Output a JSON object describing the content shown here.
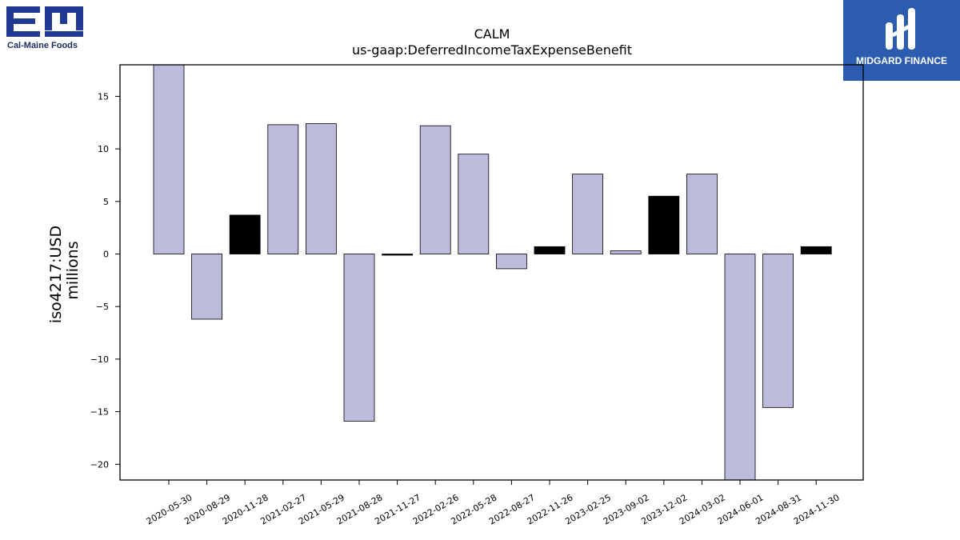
{
  "logos": {
    "left": {
      "monogram": "EM",
      "company": "Cal-Maine Foods",
      "color": "#1f3a93"
    },
    "right": {
      "brand": "MIDGARD FINANCE",
      "background": "#2b5cb0"
    }
  },
  "chart_data": {
    "type": "bar",
    "title": "CALM",
    "subtitle": "us-gaap:DeferredIncomeTaxExpenseBenefit",
    "ylabel": "iso4217:USD",
    "ylabel_unit": "millions",
    "xlabel": "",
    "ylim": [
      -21.5,
      18
    ],
    "yticks": [
      15,
      10,
      5,
      0,
      -5,
      -10,
      -15,
      -20
    ],
    "ytick_labels": [
      "15",
      "10",
      "5",
      "0",
      "−5",
      "−10",
      "−15",
      "−20"
    ],
    "grid": false,
    "colors": {
      "default": "#bdbbdb",
      "highlight": "#000000",
      "edge": "#000000"
    },
    "categories": [
      "2020-05-30",
      "2020-08-29",
      "2020-11-28",
      "2021-02-27",
      "2021-05-29",
      "2021-08-28",
      "2021-11-27",
      "2022-02-26",
      "2022-05-28",
      "2022-08-27",
      "2022-11-26",
      "2023-02-25",
      "2023-09-02",
      "2023-12-02",
      "2024-03-02",
      "2024-06-01",
      "2024-08-31",
      "2024-11-30"
    ],
    "values": [
      18.0,
      -6.2,
      3.7,
      12.3,
      12.4,
      -15.9,
      -0.1,
      12.2,
      9.5,
      -1.4,
      0.7,
      7.6,
      0.3,
      5.5,
      7.6,
      -21.5,
      -14.6,
      0.7
    ],
    "highlight": [
      false,
      false,
      true,
      false,
      false,
      false,
      true,
      false,
      false,
      false,
      true,
      false,
      false,
      true,
      false,
      false,
      false,
      true
    ]
  }
}
